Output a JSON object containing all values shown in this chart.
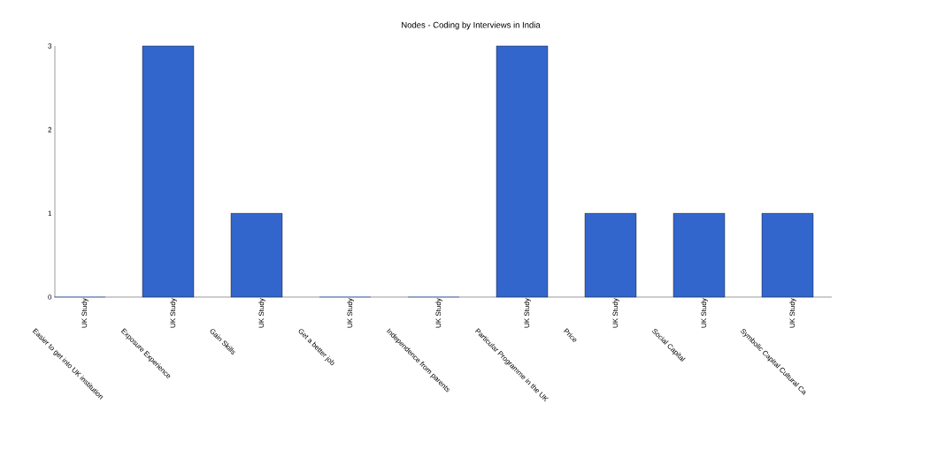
{
  "chart_data": {
    "type": "bar",
    "title": "Nodes - Coding by Interviews in India",
    "categories": [
      "Easier to get into UK institution",
      "Exposure Experience",
      "Gain Skills",
      "Get a better job",
      "Independence from parents",
      "Particular Programme in the UK",
      "Price",
      "Social Capital",
      "Symbolic Capital  Cultural Ca"
    ],
    "values": [
      0,
      3,
      1,
      0,
      0,
      3,
      1,
      1,
      1
    ],
    "color": "#3366cc",
    "annotations": [
      "UK Study",
      "UK Study",
      "UK Study",
      "UK Study",
      "UK Study",
      "UK Study",
      "UK Study",
      "UK Study",
      "UK Study"
    ],
    "ylim": [
      0,
      3
    ],
    "yticks": [
      0,
      1,
      2,
      3
    ],
    "grid": false
  }
}
